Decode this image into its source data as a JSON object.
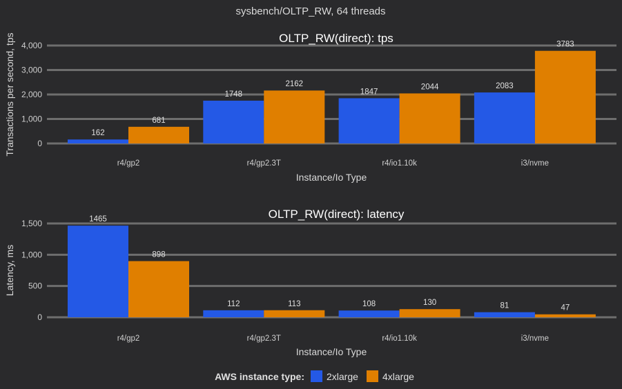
{
  "title": "sysbench/OLTP_RW, 64 threads",
  "legend": {
    "title": "AWS instance type:",
    "position": "bottom-center"
  },
  "colors": {
    "2xlarge": "#2459e6",
    "4xlarge": "#e07f00"
  },
  "chart_data": [
    {
      "type": "bar",
      "title": "OLTP_RW(direct): tps",
      "xlabel": "Instance/Io Type",
      "ylabel": "Transactions per second, tps",
      "ylim": [
        0,
        4000
      ],
      "yticks": [
        0,
        1000,
        2000,
        3000,
        4000
      ],
      "ytick_labels": [
        "0",
        "1,000",
        "2,000",
        "3,000",
        "4,000"
      ],
      "grid": true,
      "categories": [
        "r4/gp2",
        "r4/gp2.3T",
        "r4/io1.10k",
        "i3/nvme"
      ],
      "series": [
        {
          "name": "2xlarge",
          "values": [
            162,
            1748,
            1847,
            2083
          ]
        },
        {
          "name": "4xlarge",
          "values": [
            681,
            2162,
            2044,
            3783
          ]
        }
      ]
    },
    {
      "type": "bar",
      "title": "OLTP_RW(direct): latency",
      "xlabel": "Instance/Io Type",
      "ylabel": "Latency, ms",
      "ylim": [
        0,
        1500
      ],
      "yticks": [
        0,
        500,
        1000,
        1500
      ],
      "ytick_labels": [
        "0",
        "500",
        "1,000",
        "1,500"
      ],
      "grid": true,
      "categories": [
        "r4/gp2",
        "r4/gp2.3T",
        "r4/io1.10k",
        "i3/nvme"
      ],
      "series": [
        {
          "name": "2xlarge",
          "values": [
            1465,
            112,
            108,
            81
          ]
        },
        {
          "name": "4xlarge",
          "values": [
            898,
            113,
            130,
            47
          ]
        }
      ]
    }
  ]
}
